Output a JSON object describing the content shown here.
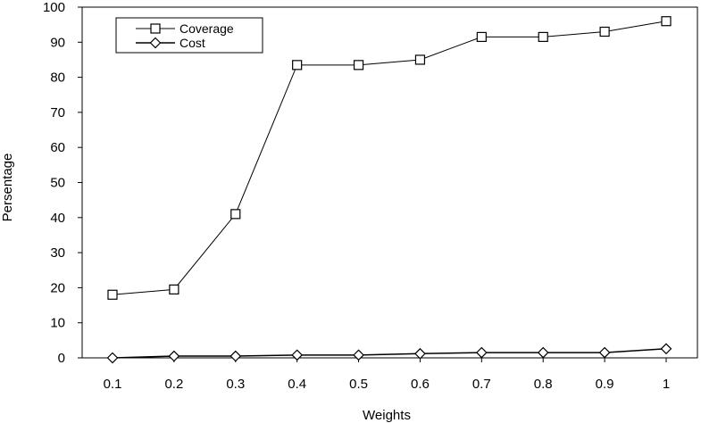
{
  "chart_data": {
    "type": "line",
    "xlabel": "Weights",
    "ylabel": "Persentage",
    "x": [
      "0.1",
      "0.2",
      "0.3",
      "0.4",
      "0.5",
      "0.6",
      "0.7",
      "0.8",
      "0.9",
      "1"
    ],
    "yticks": [
      "0",
      "10",
      "20",
      "30",
      "40",
      "50",
      "60",
      "70",
      "80",
      "90",
      "100"
    ],
    "ylim": [
      0,
      100
    ],
    "grid": false,
    "legend_position": "top-left",
    "series": [
      {
        "name": "Coverage",
        "marker": "square",
        "values": [
          18,
          19.5,
          41,
          83.5,
          83.5,
          85,
          91.5,
          91.5,
          93,
          96
        ]
      },
      {
        "name": "Cost",
        "marker": "diamond",
        "values": [
          0,
          0.5,
          0.5,
          0.8,
          0.8,
          1.2,
          1.5,
          1.5,
          1.5,
          2.6
        ]
      }
    ]
  }
}
